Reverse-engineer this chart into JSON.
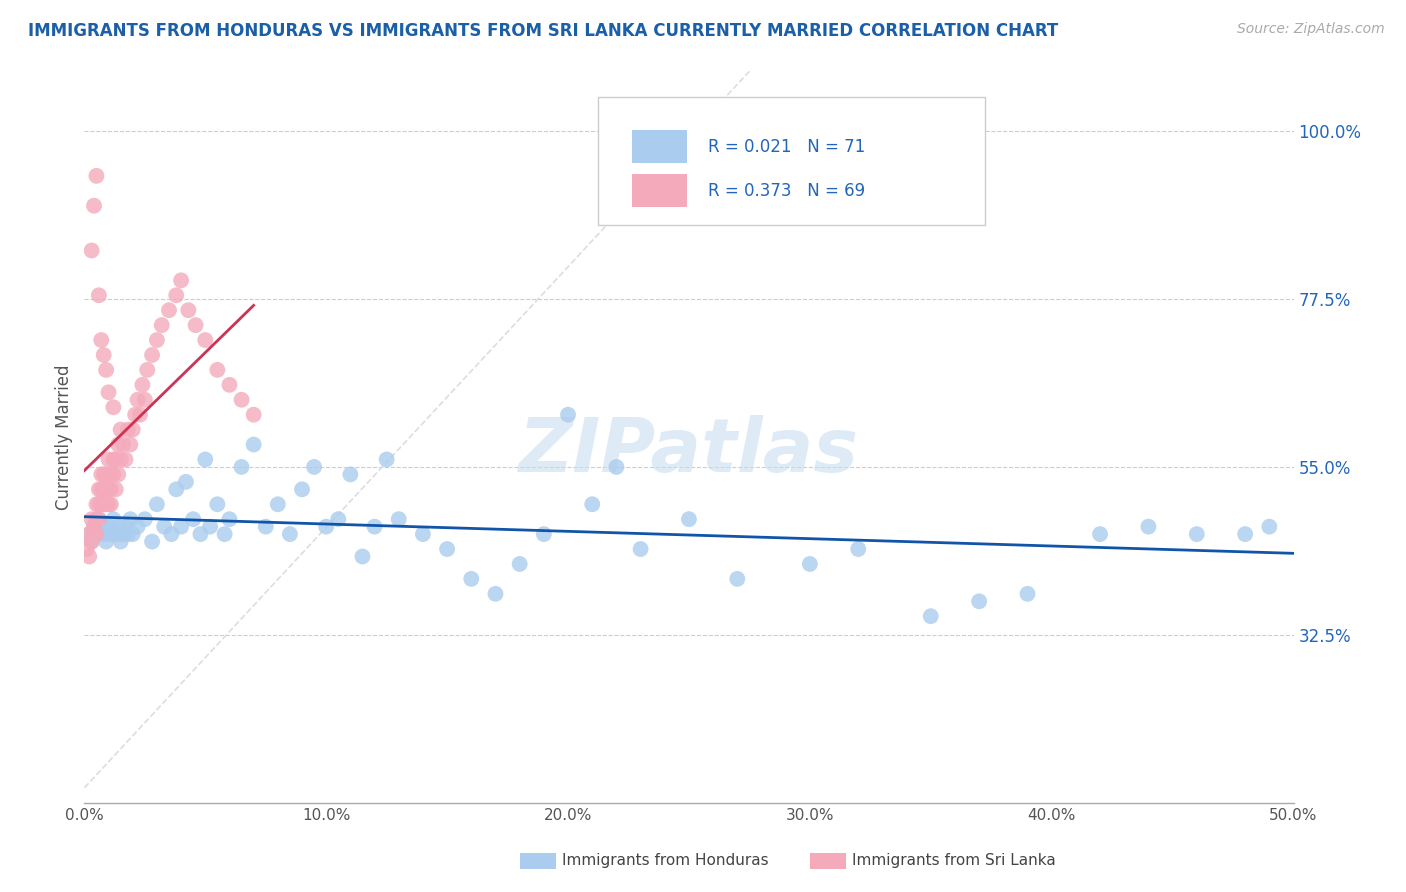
{
  "title": "IMMIGRANTS FROM HONDURAS VS IMMIGRANTS FROM SRI LANKA CURRENTLY MARRIED CORRELATION CHART",
  "source_text": "Source: ZipAtlas.com",
  "ylabel": "Currently Married",
  "xlim": [
    0.0,
    0.5
  ],
  "ylim": [
    0.1,
    1.08
  ],
  "xticklabels": [
    "0.0%",
    "",
    "10.0%",
    "",
    "20.0%",
    "",
    "30.0%",
    "",
    "40.0%",
    "",
    "50.0%"
  ],
  "xtick_vals": [
    0.0,
    0.05,
    0.1,
    0.15,
    0.2,
    0.25,
    0.3,
    0.35,
    0.4,
    0.45,
    0.5
  ],
  "ytick_positions": [
    0.325,
    0.55,
    0.775,
    1.0
  ],
  "yticklabels_right": [
    "32.5%",
    "55.0%",
    "77.5%",
    "100.0%"
  ],
  "blue_scatter_color": "#aaccee",
  "pink_scatter_color": "#f4aabb",
  "blue_line_color": "#1155aa",
  "pink_line_color": "#cc3355",
  "diag_color": "#dddddd",
  "watermark_color": "#c8dff0",
  "grid_color": "#cccccc",
  "title_color": "#1a5fa8",
  "right_tick_color": "#2266bb",
  "axis_label_color": "#555555",
  "legend_r1": "0.021",
  "legend_n1": "71",
  "legend_r2": "0.373",
  "legend_n2": "69",
  "watermark": "ZIPatlas",
  "honduras_x": [
    0.002,
    0.003,
    0.004,
    0.005,
    0.006,
    0.007,
    0.008,
    0.009,
    0.01,
    0.011,
    0.012,
    0.013,
    0.014,
    0.015,
    0.016,
    0.017,
    0.018,
    0.019,
    0.02,
    0.022,
    0.025,
    0.028,
    0.03,
    0.033,
    0.036,
    0.038,
    0.04,
    0.042,
    0.045,
    0.048,
    0.05,
    0.052,
    0.055,
    0.058,
    0.06,
    0.065,
    0.07,
    0.075,
    0.08,
    0.085,
    0.09,
    0.095,
    0.1,
    0.105,
    0.11,
    0.115,
    0.12,
    0.125,
    0.13,
    0.14,
    0.15,
    0.16,
    0.17,
    0.18,
    0.19,
    0.2,
    0.21,
    0.22,
    0.23,
    0.25,
    0.27,
    0.3,
    0.32,
    0.35,
    0.37,
    0.39,
    0.42,
    0.44,
    0.46,
    0.48,
    0.49
  ],
  "honduras_y": [
    0.46,
    0.45,
    0.47,
    0.46,
    0.48,
    0.47,
    0.46,
    0.45,
    0.47,
    0.46,
    0.48,
    0.46,
    0.47,
    0.45,
    0.46,
    0.47,
    0.46,
    0.48,
    0.46,
    0.47,
    0.48,
    0.45,
    0.5,
    0.47,
    0.46,
    0.52,
    0.47,
    0.53,
    0.48,
    0.46,
    0.56,
    0.47,
    0.5,
    0.46,
    0.48,
    0.55,
    0.58,
    0.47,
    0.5,
    0.46,
    0.52,
    0.55,
    0.47,
    0.48,
    0.54,
    0.43,
    0.47,
    0.56,
    0.48,
    0.46,
    0.44,
    0.4,
    0.38,
    0.42,
    0.46,
    0.62,
    0.5,
    0.55,
    0.44,
    0.48,
    0.4,
    0.42,
    0.44,
    0.35,
    0.37,
    0.38,
    0.46,
    0.47,
    0.46,
    0.46,
    0.47
  ],
  "srilanka_x": [
    0.001,
    0.002,
    0.002,
    0.003,
    0.003,
    0.004,
    0.004,
    0.005,
    0.005,
    0.005,
    0.006,
    0.006,
    0.006,
    0.007,
    0.007,
    0.007,
    0.008,
    0.008,
    0.008,
    0.009,
    0.009,
    0.009,
    0.01,
    0.01,
    0.01,
    0.011,
    0.011,
    0.011,
    0.012,
    0.012,
    0.013,
    0.013,
    0.014,
    0.014,
    0.015,
    0.015,
    0.016,
    0.017,
    0.018,
    0.019,
    0.02,
    0.021,
    0.022,
    0.023,
    0.024,
    0.025,
    0.026,
    0.028,
    0.03,
    0.032,
    0.035,
    0.038,
    0.04,
    0.043,
    0.046,
    0.05,
    0.055,
    0.06,
    0.065,
    0.07,
    0.003,
    0.004,
    0.005,
    0.006,
    0.007,
    0.008,
    0.009,
    0.01,
    0.012
  ],
  "srilanka_y": [
    0.44,
    0.46,
    0.43,
    0.48,
    0.45,
    0.46,
    0.47,
    0.5,
    0.48,
    0.46,
    0.48,
    0.5,
    0.52,
    0.5,
    0.52,
    0.54,
    0.52,
    0.5,
    0.54,
    0.52,
    0.5,
    0.54,
    0.52,
    0.5,
    0.56,
    0.52,
    0.54,
    0.5,
    0.56,
    0.54,
    0.52,
    0.56,
    0.54,
    0.58,
    0.56,
    0.6,
    0.58,
    0.56,
    0.6,
    0.58,
    0.6,
    0.62,
    0.64,
    0.62,
    0.66,
    0.64,
    0.68,
    0.7,
    0.72,
    0.74,
    0.76,
    0.78,
    0.8,
    0.76,
    0.74,
    0.72,
    0.68,
    0.66,
    0.64,
    0.62,
    0.84,
    0.9,
    0.94,
    0.78,
    0.72,
    0.7,
    0.68,
    0.65,
    0.63
  ]
}
